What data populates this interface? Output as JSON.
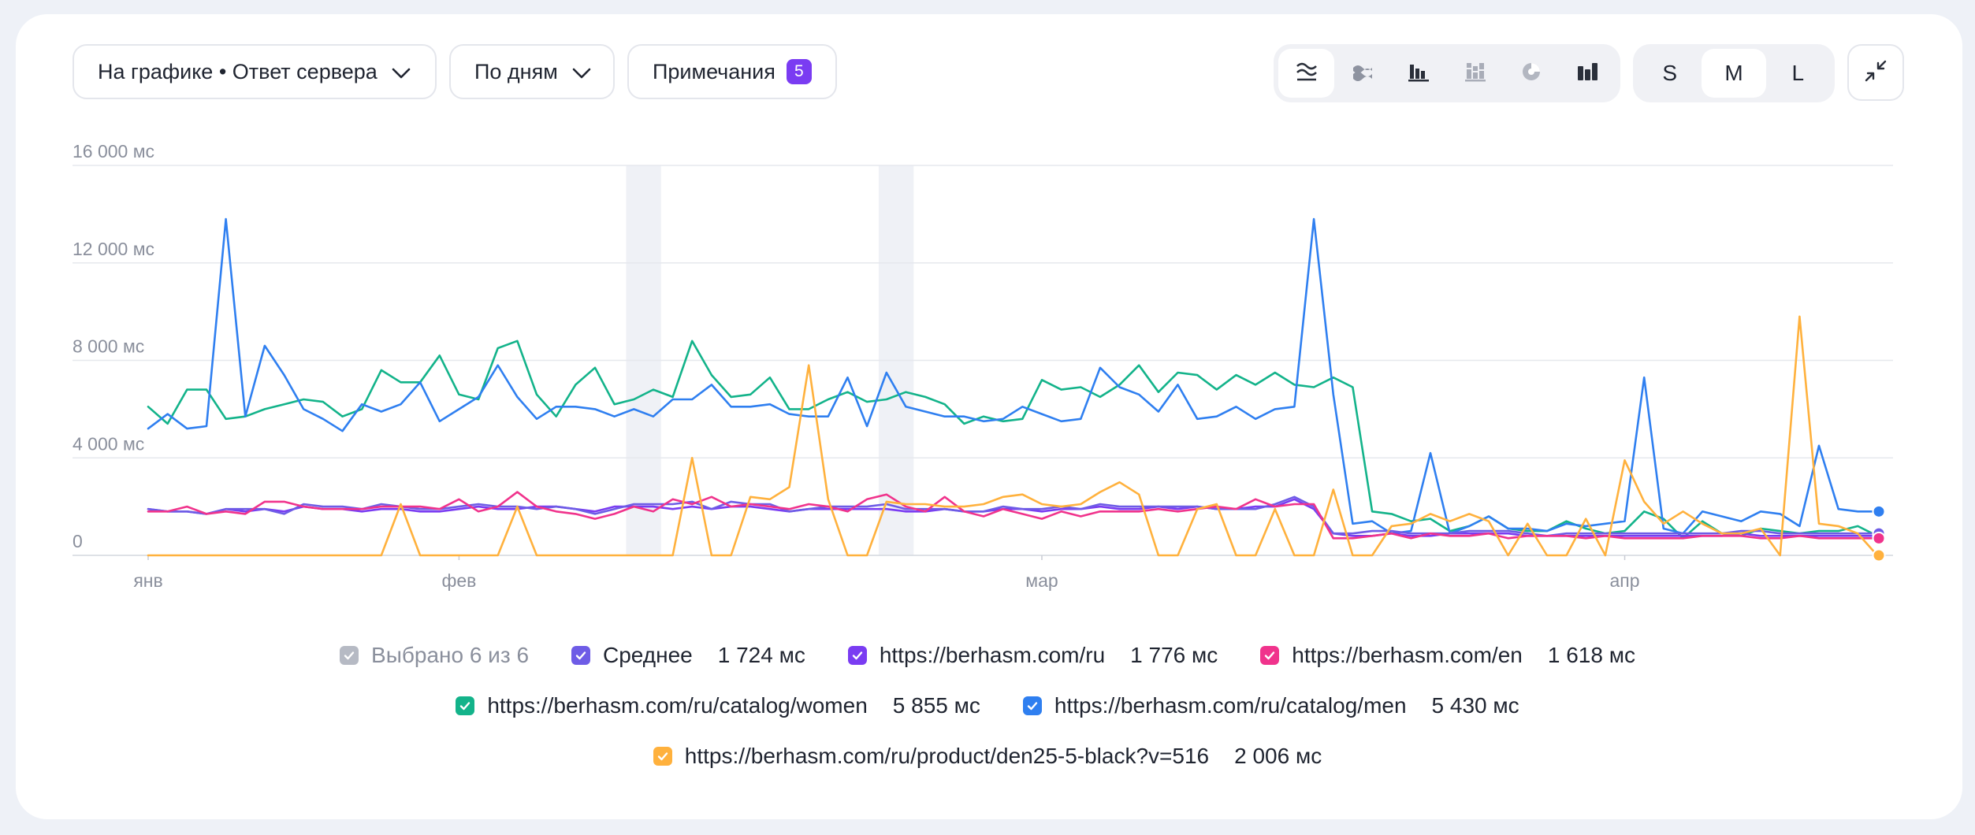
{
  "controls": {
    "metric_label": "На графике • Ответ сервера",
    "period_label": "По дням",
    "notes_label": "Примечания",
    "notes_count": "5"
  },
  "chart_types": [
    "line-chart-icon",
    "stacked-area-icon",
    "bar-chart-icon",
    "stacked-bar-icon",
    "pie-chart-icon",
    "column-chart-icon"
  ],
  "sizes": [
    "S",
    "M",
    "L"
  ],
  "active_size": "M",
  "legend": {
    "selected_label": "Выбрано 6 из 6",
    "items": [
      {
        "label": "Среднее",
        "value": "1 724 мс",
        "color": "#6e5ce6"
      },
      {
        "label": "https://berhasm.com/ru",
        "value": "1 776 мс",
        "color": "#7a3cf2"
      },
      {
        "label": "https://berhasm.com/en",
        "value": "1 618 мс",
        "color": "#f0338c"
      },
      {
        "label": "https://berhasm.com/ru/catalog/women",
        "value": "5 855 мс",
        "color": "#13b38a"
      },
      {
        "label": "https://berhasm.com/ru/catalog/men",
        "value": "5 430 мс",
        "color": "#2f7ff0"
      },
      {
        "label": "https://berhasm.com/ru/product/den25-5-black?v=516",
        "value": "2 006 мс",
        "color": "#ffb13d"
      }
    ]
  },
  "chart_data": {
    "type": "line",
    "ylim": [
      0,
      16000
    ],
    "yticks": [
      {
        "value": 0,
        "label": "0"
      },
      {
        "value": 4000,
        "label": "4 000 мс"
      },
      {
        "value": 8000,
        "label": "8 000 мс"
      },
      {
        "value": 12000,
        "label": "12 000 мс"
      },
      {
        "value": 16000,
        "label": "16 000 мс"
      }
    ],
    "x_start_date": "2025-01-01",
    "xticks": [
      {
        "index": 0,
        "label": "янв"
      },
      {
        "index": 16,
        "label": "фев"
      },
      {
        "index": 46,
        "label": "мар"
      },
      {
        "index": 76,
        "label": "апр"
      }
    ],
    "highlight_bands": [
      [
        25,
        26
      ],
      [
        38,
        39
      ]
    ],
    "series": [
      {
        "name": "https://berhasm.com/ru/catalog/women",
        "color": "#13b38a",
        "values": [
          6100,
          5400,
          6800,
          6800,
          5600,
          5700,
          6000,
          6200,
          6400,
          6300,
          5700,
          6000,
          7600,
          7100,
          7100,
          8200,
          6600,
          6400,
          8500,
          8800,
          6600,
          5700,
          7000,
          7700,
          6200,
          6400,
          6800,
          6500,
          8800,
          7400,
          6500,
          6600,
          7300,
          6000,
          6000,
          6400,
          6700,
          6300,
          6400,
          6700,
          6500,
          6200,
          5400,
          5700,
          5500,
          5600,
          7200,
          6800,
          6900,
          6500,
          7000,
          7800,
          6700,
          7500,
          7400,
          6800,
          7400,
          7000,
          7500,
          7000,
          6900,
          7300,
          6900,
          1800,
          1700,
          1400,
          1500,
          1000,
          1200,
          1600,
          1100,
          1000,
          1000,
          1400,
          1100,
          900,
          1000,
          1800,
          1500,
          700,
          1400,
          900,
          800,
          1100,
          1000,
          900,
          1000,
          1000,
          1200,
          800
        ]
      },
      {
        "name": "https://berhasm.com/ru/catalog/men",
        "color": "#2f7ff0",
        "values": [
          5200,
          5800,
          5200,
          5300,
          13800,
          5700,
          8600,
          7400,
          6000,
          5600,
          5100,
          6200,
          5900,
          6200,
          7100,
          5500,
          6000,
          6500,
          7800,
          6500,
          5600,
          6100,
          6100,
          6000,
          5700,
          6000,
          5700,
          6400,
          6400,
          7000,
          6100,
          6100,
          6200,
          5800,
          5700,
          5700,
          7300,
          5300,
          7500,
          6100,
          5900,
          5700,
          5700,
          5500,
          5600,
          6100,
          5800,
          5500,
          5600,
          7700,
          6900,
          6600,
          5900,
          7000,
          5600,
          5700,
          6100,
          5600,
          6000,
          6100,
          13800,
          6600,
          1300,
          1400,
          900,
          1000,
          4200,
          900,
          1200,
          1600,
          1100,
          1100,
          1000,
          1300,
          1200,
          1300,
          1400,
          7300,
          1100,
          900,
          1800,
          1600,
          1400,
          1800,
          1700,
          1200,
          4500,
          1900,
          1800,
          1800
        ]
      },
      {
        "name": "https://berhasm.com/ru",
        "color": "#7a3cf2",
        "values": [
          1900,
          1800,
          1800,
          1700,
          1900,
          1800,
          1900,
          1800,
          2000,
          1900,
          1900,
          1800,
          1900,
          1900,
          1800,
          1800,
          1900,
          2000,
          1900,
          1900,
          2000,
          2000,
          1900,
          1800,
          2000,
          2000,
          2000,
          1900,
          2000,
          1900,
          2000,
          2000,
          1900,
          1800,
          1900,
          1900,
          1900,
          1900,
          1900,
          1800,
          1800,
          1900,
          1800,
          1800,
          1900,
          1900,
          1800,
          1900,
          1900,
          2000,
          1900,
          1900,
          2000,
          1900,
          2000,
          1900,
          1900,
          2000,
          2000,
          2300,
          1900,
          900,
          800,
          800,
          900,
          800,
          800,
          900,
          900,
          900,
          900,
          800,
          800,
          800,
          800,
          800,
          800,
          800,
          800,
          800,
          800,
          800,
          900,
          800,
          800,
          800,
          800,
          800,
          800,
          800
        ]
      },
      {
        "name": "Среднее",
        "color": "#6e5ce6",
        "values": [
          1900,
          1800,
          1800,
          1700,
          1900,
          1900,
          1900,
          1700,
          2100,
          2000,
          2000,
          1900,
          2100,
          2000,
          1900,
          1900,
          2000,
          2100,
          2000,
          2000,
          1900,
          2000,
          1900,
          1700,
          1900,
          2100,
          2100,
          2100,
          2200,
          1900,
          2200,
          2100,
          2100,
          1800,
          1900,
          2000,
          2000,
          2000,
          2100,
          1900,
          1900,
          1900,
          1800,
          1800,
          2000,
          1900,
          1900,
          2000,
          1900,
          2100,
          2000,
          2000,
          2000,
          2000,
          2000,
          1900,
          1900,
          1900,
          2100,
          2400,
          2000,
          900,
          900,
          1000,
          1000,
          900,
          900,
          900,
          1000,
          1000,
          1000,
          900,
          800,
          900,
          900,
          900,
          900,
          900,
          900,
          900,
          900,
          900,
          1000,
          1000,
          900,
          900,
          900,
          900,
          900,
          900
        ]
      },
      {
        "name": "https://berhasm.com/en",
        "color": "#f0338c",
        "values": [
          1800,
          1800,
          2000,
          1700,
          1800,
          1700,
          2200,
          2200,
          2000,
          1900,
          1900,
          1900,
          2000,
          2000,
          2000,
          1900,
          2300,
          1800,
          2000,
          2600,
          2000,
          1800,
          1700,
          1500,
          1700,
          2000,
          1800,
          2300,
          2100,
          2400,
          2000,
          2100,
          2000,
          1900,
          2100,
          2000,
          1800,
          2300,
          2500,
          2000,
          1800,
          2400,
          1800,
          1600,
          1900,
          1700,
          1500,
          1800,
          1600,
          1800,
          1800,
          1800,
          1900,
          1800,
          1900,
          2000,
          1900,
          2300,
          2000,
          2100,
          2100,
          700,
          700,
          800,
          900,
          700,
          900,
          800,
          800,
          900,
          700,
          800,
          800,
          800,
          700,
          800,
          700,
          700,
          700,
          700,
          800,
          800,
          800,
          700,
          700,
          800,
          700,
          700,
          700,
          700
        ]
      },
      {
        "name": "https://berhasm.com/ru/product/den25-5-black?v=516",
        "color": "#ffb13d",
        "values": [
          0,
          0,
          0,
          0,
          0,
          0,
          0,
          0,
          0,
          0,
          0,
          0,
          0,
          2100,
          0,
          0,
          0,
          0,
          0,
          2000,
          0,
          0,
          0,
          0,
          0,
          0,
          0,
          0,
          4000,
          0,
          0,
          2400,
          2300,
          2800,
          7800,
          2300,
          0,
          0,
          2200,
          2100,
          2100,
          2000,
          2000,
          2100,
          2400,
          2500,
          2100,
          2000,
          2100,
          2600,
          3000,
          2500,
          0,
          0,
          1900,
          2100,
          0,
          0,
          1900,
          0,
          0,
          2700,
          0,
          0,
          1200,
          1300,
          1700,
          1400,
          1700,
          1400,
          0,
          1300,
          0,
          0,
          1500,
          0,
          3900,
          2200,
          1300,
          1800,
          1300,
          900,
          900,
          1100,
          0,
          9800,
          1300,
          1200,
          900,
          0
        ]
      }
    ]
  }
}
